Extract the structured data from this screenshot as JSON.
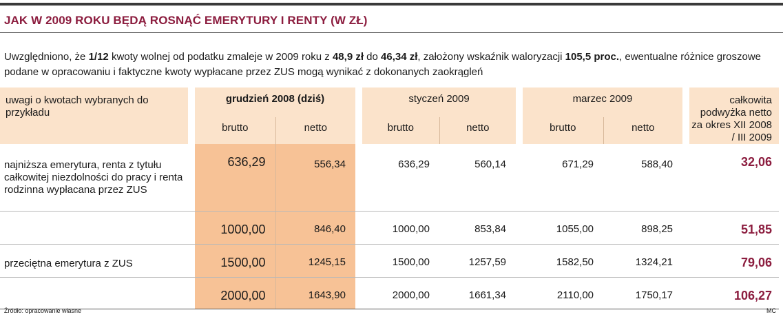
{
  "title": "JAK W 2009 ROKU BĘDĄ ROSNĄĆ EMERYTURY I RENTY (W ZŁ)",
  "intro": {
    "p1": "Uwzględniono, że ",
    "b1": "1/12",
    "p2": " kwoty wolnej od podatku zmaleje w 2009 roku z ",
    "b2": "48,9 zł",
    "p3": " do ",
    "b3": "46,34 zł",
    "p4": ", założony wskaźnik waloryzacji ",
    "b4": "105,5 proc.",
    "p5": ", ewentualne różnice groszowe podane w opracowaniu i faktyczne kwoty wypłacane przez ZUS mogą wynikać z dokonanych zaokrągleń"
  },
  "header": {
    "label_col": "uwagi o kwotach wybranych do przykładu",
    "groups": [
      "grudzień 2008 (dziś)",
      "styczeń 2009",
      "marzec 2009"
    ],
    "brutto": "brutto",
    "netto": "netto",
    "total_col": "całkowita podwyżka netto za okres XII 2008 / III 2009"
  },
  "rows": [
    {
      "label": "najniższa emerytura, renta z tytułu całkowitej niezdolności do pracy i renta rodzinna wypłacana przez ZUS",
      "dec_brutto": "636,29",
      "dec_netto": "556,34",
      "jan_brutto": "636,29",
      "jan_netto": "560,14",
      "mar_brutto": "671,29",
      "mar_netto": "588,40",
      "total": "32,06"
    },
    {
      "label": "",
      "dec_brutto": "1000,00",
      "dec_netto": "846,40",
      "jan_brutto": "1000,00",
      "jan_netto": "853,84",
      "mar_brutto": "1055,00",
      "mar_netto": "898,25",
      "total": "51,85"
    },
    {
      "label": "przeciętna emerytura z ZUS",
      "dec_brutto": "1500,00",
      "dec_netto": "1245,15",
      "jan_brutto": "1500,00",
      "jan_netto": "1257,59",
      "mar_brutto": "1582,50",
      "mar_netto": "1324,21",
      "total": "79,06"
    },
    {
      "label": "",
      "dec_brutto": "2000,00",
      "dec_netto": "1643,90",
      "jan_brutto": "2000,00",
      "jan_netto": "1661,34",
      "mar_brutto": "2110,00",
      "mar_netto": "1750,17",
      "total": "106,27"
    }
  ],
  "footer": {
    "source": "Źródło: opracowanie własne",
    "author": "MC"
  },
  "colors": {
    "title": "#8c1d3f",
    "header_bg": "#fbe3cb",
    "highlight_bg": "#f7c296",
    "total_text": "#8c1d3f"
  }
}
